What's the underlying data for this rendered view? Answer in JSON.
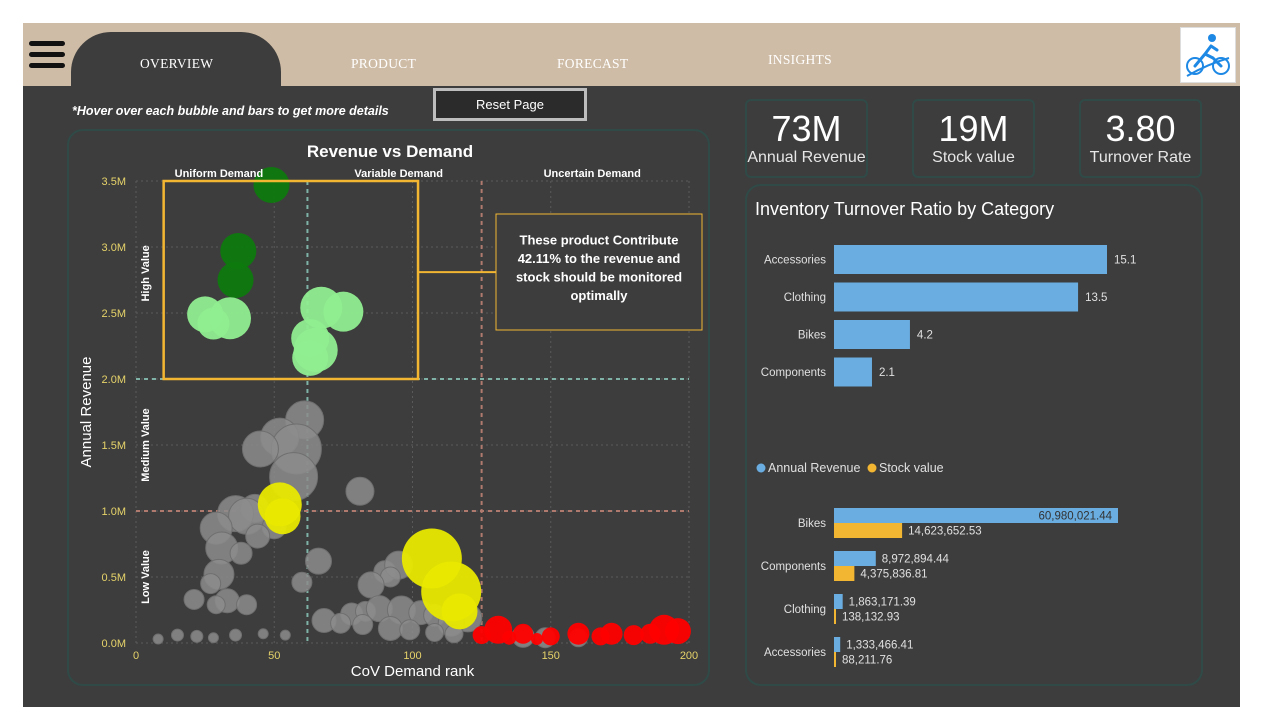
{
  "nav": {
    "tabs": [
      "OVERVIEW",
      "PRODUCT",
      "FORECAST",
      "INSIGHTS"
    ]
  },
  "note": "*Hover over each bubble and bars to get more details",
  "reset_label": "Reset Page",
  "kpis": [
    {
      "value": "73M",
      "label": "Annual Revenue"
    },
    {
      "value": "19M",
      "label": "Stock value"
    },
    {
      "value": "3.80",
      "label": "Turnover Rate"
    }
  ],
  "colors": {
    "background": "#3d3d3d",
    "topbar": "#cfbca6",
    "accent_orange": "#f2b632",
    "bar_blue": "#6aade0",
    "high_green_light": "#90ee90",
    "high_green_dark": "#0e7a0e",
    "medium_gray": "#8c8c8c",
    "yellow": "#e8e800",
    "red": "#ff0000"
  },
  "chart_data": [
    {
      "type": "scatter",
      "title": "Revenue vs Demand",
      "xlabel": "CoV Demand rank",
      "ylabel": "Annual Revenue",
      "xlim": [
        0,
        200
      ],
      "ylim": [
        0,
        3500000
      ],
      "x_ticks": [
        0,
        50,
        100,
        150,
        200
      ],
      "y_ticks": [
        "0.0M",
        "0.5M",
        "1.0M",
        "1.5M",
        "2.0M",
        "2.5M",
        "3.0M",
        "3.5M"
      ],
      "zone_labels_x": [
        "Uniform Demand",
        "Variable Demand",
        "Uncertain Demand"
      ],
      "zone_labels_y": [
        "High Value",
        "Medium Value",
        "Low Value"
      ],
      "thresholds": {
        "x": [
          62,
          125
        ],
        "y": [
          2000000,
          1000000
        ]
      },
      "annotation": "These product Contribute 42.11% to the revenue and stock should be monitored optimally",
      "series": [
        {
          "color": "#0e7a0e",
          "points": [
            [
              49,
              3470000,
              18
            ],
            [
              37,
              2970000,
              18
            ],
            [
              36,
              2750000,
              18
            ]
          ]
        },
        {
          "color": "#90ee90",
          "points": [
            [
              25,
              2490000,
              18
            ],
            [
              34,
              2460000,
              21
            ],
            [
              28,
              2420000,
              16
            ],
            [
              67,
              2540000,
              21
            ],
            [
              75,
              2510000,
              20
            ],
            [
              63,
              2310000,
              19
            ],
            [
              65,
              2220000,
              22
            ],
            [
              63,
              2160000,
              18
            ]
          ]
        },
        {
          "color": "#8c8c8c",
          "points": [
            [
              61,
              1690000,
              19
            ],
            [
              52,
              1560000,
              19
            ],
            [
              58,
              1470000,
              25
            ],
            [
              45,
              1470000,
              18
            ],
            [
              57,
              1260000,
              24
            ],
            [
              81,
              1150000,
              14
            ],
            [
              43,
              1020000,
              14
            ],
            [
              36,
              980000,
              18
            ],
            [
              40,
              960000,
              18
            ],
            [
              29,
              870000,
              16
            ],
            [
              50,
              880000,
              12
            ],
            [
              44,
              810000,
              12
            ],
            [
              31,
              720000,
              16
            ],
            [
              38,
              680000,
              11
            ],
            [
              30,
              520000,
              15
            ],
            [
              27,
              450000,
              10
            ],
            [
              66,
              620000,
              13
            ],
            [
              60,
              460000,
              10
            ],
            [
              90,
              540000,
              11
            ],
            [
              95,
              590000,
              14
            ],
            [
              92,
              500000,
              10
            ],
            [
              85,
              440000,
              13
            ],
            [
              33,
              320000,
              12
            ],
            [
              40,
              290000,
              10
            ],
            [
              21,
              330000,
              10
            ],
            [
              29,
              290000,
              9
            ],
            [
              78,
              220000,
              11
            ],
            [
              83,
              240000,
              10
            ],
            [
              88,
              260000,
              13
            ],
            [
              96,
              250000,
              14
            ],
            [
              103,
              230000,
              12
            ],
            [
              108,
              210000,
              11
            ],
            [
              120,
              190000,
              14
            ],
            [
              114,
              150000,
              13
            ],
            [
              68,
              170000,
              12
            ],
            [
              74,
              150000,
              10
            ],
            [
              82,
              140000,
              10
            ],
            [
              92,
              110000,
              12
            ],
            [
              99,
              100000,
              10
            ],
            [
              108,
              80000,
              9
            ],
            [
              115,
              70000,
              9
            ],
            [
              140,
              50000,
              11
            ],
            [
              148,
              40000,
              10
            ],
            [
              160,
              40000,
              9
            ],
            [
              15,
              60000,
              6
            ],
            [
              22,
              50000,
              6
            ],
            [
              36,
              60000,
              6
            ],
            [
              46,
              70000,
              5
            ],
            [
              54,
              60000,
              5
            ],
            [
              8,
              30000,
              5
            ],
            [
              28,
              40000,
              5
            ]
          ]
        },
        {
          "color": "#e8e800",
          "points": [
            [
              52,
              1050000,
              22
            ],
            [
              53,
              960000,
              18
            ],
            [
              107,
              640000,
              30
            ],
            [
              114,
              390000,
              30
            ],
            [
              117,
              240000,
              18
            ]
          ]
        },
        {
          "color": "#ff0000",
          "points": [
            [
              131,
              100000,
              14
            ],
            [
              140,
              70000,
              10
            ],
            [
              160,
              70000,
              11
            ],
            [
              172,
              70000,
              11
            ],
            [
              180,
              60000,
              10
            ],
            [
              186,
              70000,
              10
            ],
            [
              191,
              100000,
              15
            ],
            [
              196,
              90000,
              13
            ],
            [
              150,
              50000,
              9
            ],
            [
              168,
              50000,
              9
            ],
            [
              125,
              60000,
              9
            ],
            [
              135,
              40000,
              7
            ],
            [
              145,
              30000,
              6
            ]
          ]
        }
      ]
    },
    {
      "type": "bar",
      "orientation": "horizontal",
      "title": "Inventory Turnover Ratio by Category",
      "categories": [
        "Accessories",
        "Clothing",
        "Bikes",
        "Components"
      ],
      "values": [
        15.1,
        13.5,
        4.2,
        2.1
      ],
      "value_labels": [
        "15.1",
        "13.5",
        "4.2",
        "2.1"
      ],
      "color": "#6aade0"
    },
    {
      "type": "bar",
      "orientation": "horizontal",
      "categories": [
        "Bikes",
        "Components",
        "Clothing",
        "Accessories"
      ],
      "series": [
        {
          "name": "Annual Revenue",
          "color": "#6aade0",
          "values": [
            60980021.44,
            8972894.44,
            1863171.39,
            1333466.41
          ],
          "labels": [
            "60,980,021.44",
            "8,972,894.44",
            "1,863,171.39",
            "1,333,466.41"
          ]
        },
        {
          "name": "Stock value",
          "color": "#f2b632",
          "values": [
            14623652.53,
            4375836.81,
            138132.93,
            88211.76
          ],
          "labels": [
            "14,623,652.53",
            "4,375,836.81",
            "138,132.93",
            "88,211.76"
          ]
        }
      ]
    }
  ]
}
